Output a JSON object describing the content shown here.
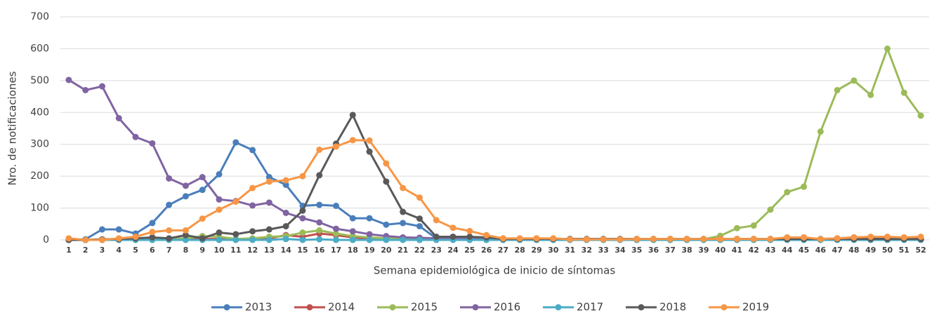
{
  "chart_data": {
    "type": "line",
    "x_label": "Semana epidemiológica de inicio de síntomas",
    "y_label": "Nro. de notificaciones",
    "categories": [
      1,
      2,
      3,
      4,
      5,
      6,
      7,
      8,
      9,
      10,
      11,
      12,
      13,
      14,
      15,
      16,
      17,
      18,
      19,
      20,
      21,
      22,
      23,
      24,
      25,
      26,
      27,
      28,
      29,
      30,
      31,
      32,
      33,
      34,
      35,
      36,
      37,
      38,
      39,
      40,
      41,
      42,
      43,
      44,
      45,
      46,
      47,
      48,
      49,
      50,
      51,
      52
    ],
    "ylim": [
      0,
      700
    ],
    "yticks": [
      0,
      100,
      200,
      300,
      400,
      500,
      600,
      700
    ],
    "grid": true,
    "legend": "bottom",
    "series": [
      {
        "name": "2013",
        "color": "#4a7ebb",
        "values": [
          0,
          2,
          33,
          33,
          20,
          53,
          110,
          137,
          157,
          206,
          306,
          282,
          197,
          173,
          107,
          110,
          107,
          68,
          68,
          48,
          53,
          43,
          5,
          5,
          5,
          3,
          2,
          2,
          2,
          2,
          1,
          1,
          1,
          1,
          1,
          1,
          1,
          1,
          1,
          1,
          1,
          1,
          1,
          1,
          1,
          1,
          1,
          1,
          1,
          1,
          1,
          1
        ]
      },
      {
        "name": "2014",
        "color": "#c0504d",
        "values": [
          0,
          0,
          0,
          2,
          3,
          5,
          3,
          5,
          3,
          3,
          3,
          3,
          5,
          15,
          10,
          20,
          15,
          8,
          5,
          5,
          3,
          3,
          2,
          2,
          2,
          2,
          1,
          1,
          1,
          1,
          1,
          1,
          1,
          1,
          1,
          1,
          1,
          1,
          1,
          1,
          1,
          1,
          1,
          1,
          1,
          1,
          1,
          1,
          1,
          1,
          1,
          1
        ]
      },
      {
        "name": "2015",
        "color": "#9bbb59",
        "values": [
          0,
          0,
          0,
          0,
          0,
          0,
          3,
          5,
          12,
          10,
          3,
          5,
          10,
          12,
          23,
          30,
          20,
          12,
          8,
          5,
          3,
          2,
          2,
          2,
          2,
          2,
          1,
          1,
          1,
          1,
          1,
          1,
          1,
          1,
          1,
          1,
          1,
          1,
          2,
          13,
          37,
          45,
          95,
          150,
          167,
          340,
          470,
          500,
          455,
          600,
          462,
          390
        ]
      },
      {
        "name": "2016",
        "color": "#8064a2",
        "values": [
          502,
          470,
          482,
          382,
          323,
          303,
          193,
          170,
          197,
          127,
          122,
          108,
          117,
          85,
          68,
          55,
          35,
          27,
          18,
          12,
          8,
          7,
          5,
          5,
          5,
          3,
          3,
          3,
          3,
          3,
          3,
          3,
          3,
          3,
          3,
          3,
          3,
          3,
          3,
          3,
          3,
          3,
          3,
          3,
          3,
          3,
          5,
          8,
          5,
          3,
          3,
          3
        ]
      },
      {
        "name": "2017",
        "color": "#4bacc6",
        "values": [
          0,
          0,
          0,
          0,
          0,
          0,
          0,
          0,
          0,
          0,
          0,
          0,
          0,
          3,
          0,
          2,
          0,
          0,
          0,
          0,
          0,
          0,
          0,
          0,
          0,
          0,
          0,
          0,
          0,
          0,
          0,
          0,
          0,
          0,
          0,
          0,
          0,
          0,
          0,
          0,
          0,
          0,
          0,
          0,
          0,
          0,
          0,
          0,
          0,
          0,
          0,
          0
        ]
      },
      {
        "name": "2018",
        "color": "#595959",
        "values": [
          0,
          0,
          2,
          3,
          5,
          8,
          5,
          15,
          5,
          23,
          18,
          27,
          33,
          43,
          92,
          203,
          302,
          392,
          277,
          183,
          88,
          67,
          10,
          10,
          10,
          8,
          3,
          3,
          3,
          3,
          3,
          3,
          3,
          3,
          3,
          3,
          3,
          3,
          3,
          3,
          3,
          3,
          3,
          3,
          3,
          3,
          3,
          3,
          3,
          3,
          3,
          3
        ]
      },
      {
        "name": "2019",
        "color": "#f79646",
        "values": [
          5,
          0,
          0,
          5,
          10,
          25,
          30,
          30,
          67,
          95,
          120,
          163,
          183,
          187,
          200,
          283,
          293,
          313,
          312,
          240,
          163,
          133,
          62,
          38,
          28,
          15,
          5,
          5,
          5,
          5,
          2,
          2,
          2,
          2,
          3,
          3,
          3,
          3,
          3,
          3,
          3,
          3,
          3,
          8,
          8,
          3,
          5,
          8,
          10,
          10,
          8,
          10
        ]
      }
    ]
  }
}
